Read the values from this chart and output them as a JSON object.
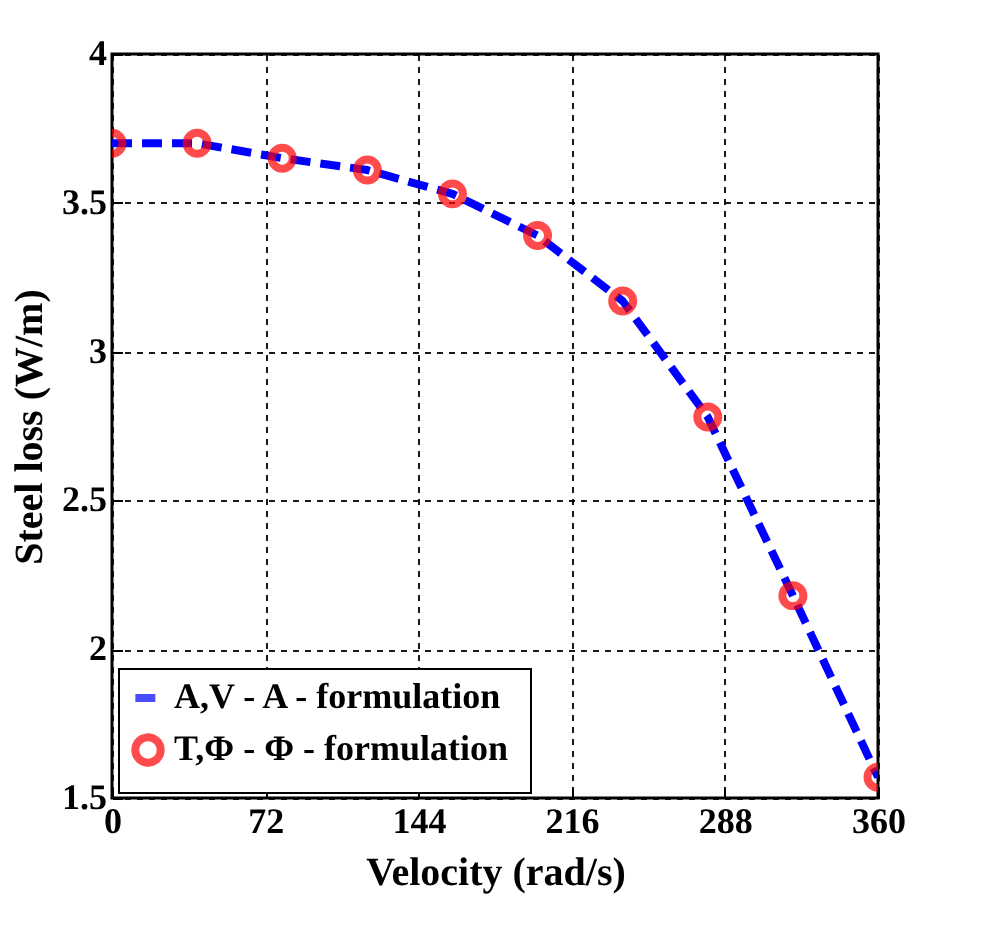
{
  "chart_data": {
    "type": "line",
    "xlabel": "Velocity (rad/s)",
    "ylabel": "Steel loss (W/m)",
    "x": [
      0,
      40,
      80,
      120,
      160,
      200,
      240,
      280,
      320,
      360
    ],
    "series": [
      {
        "name": "A,V - A - formulation",
        "type": "line",
        "color": "#0000ff",
        "line_style": "dashed",
        "marker": "none",
        "values": [
          3.7,
          3.7,
          3.65,
          3.61,
          3.53,
          3.39,
          3.17,
          2.78,
          2.18,
          1.57
        ]
      },
      {
        "name": "T,Φ - Φ  - formulation",
        "type": "scatter",
        "color": "#ff0000",
        "marker": "circle",
        "values": [
          3.7,
          3.7,
          3.65,
          3.61,
          3.53,
          3.39,
          3.17,
          2.78,
          2.18,
          1.57
        ]
      }
    ],
    "xlim": [
      0,
      360
    ],
    "xticks": [
      0,
      72,
      144,
      216,
      288,
      360
    ],
    "ylim": [
      1.5,
      4
    ],
    "yticks": [
      1.5,
      2,
      2.5,
      3,
      3.5,
      4
    ],
    "grid": true,
    "legend": "bottom left"
  }
}
